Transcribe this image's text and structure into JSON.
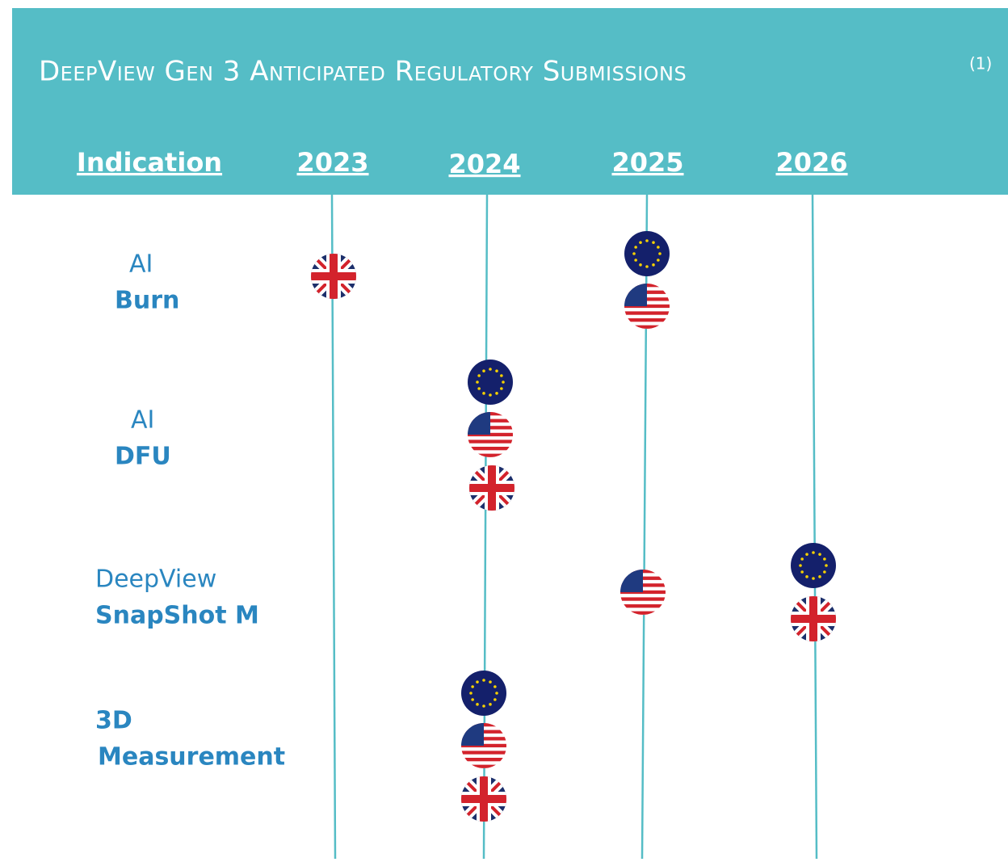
{
  "header": {
    "title": "DeepView Gen 3 Anticipated Regulatory Submissions",
    "footnote": "(1)"
  },
  "columns": [
    "Indication",
    "2023",
    "2024",
    "2025",
    "2026"
  ],
  "rows": [
    {
      "line1": "AI",
      "line2": "Burn"
    },
    {
      "line1": "AI",
      "line2": "DFU"
    },
    {
      "line1": "DeepView",
      "line2": "SnapShot M"
    },
    {
      "line1": "3D",
      "line2": "Measurement"
    }
  ]
}
